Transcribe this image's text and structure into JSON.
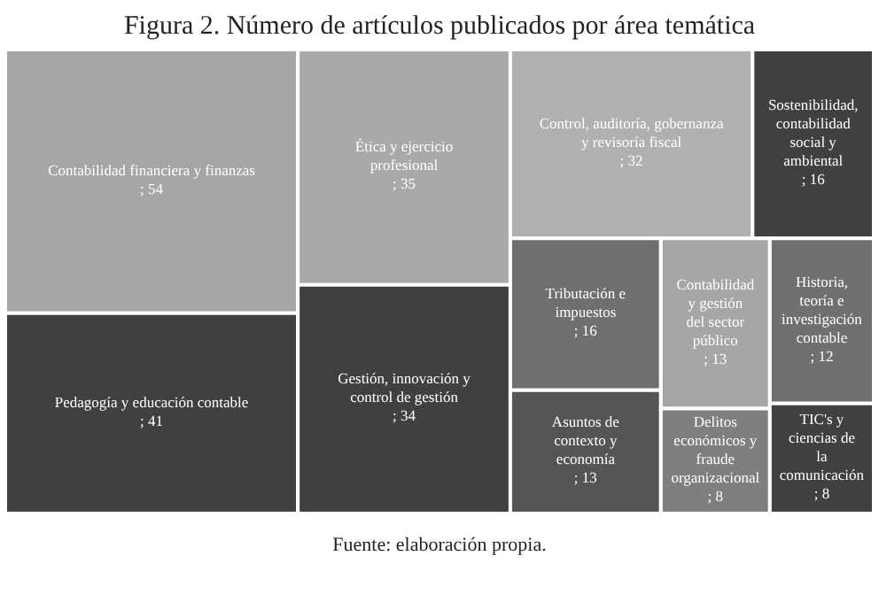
{
  "chart_data": {
    "type": "other",
    "title": "Figura 2. Número de artículos publicados por área temática",
    "categories": [
      "Contabilidad financiera y finanzas",
      "Pedagogía y educación contable",
      "Ética y ejercicio profesional",
      "Gestión, innovación y control de gestión",
      "Control, auditoría, gobernanza y revisoría fiscal",
      "Sostenibilidad, contabilidad social y ambiental",
      "Tributación e impuestos",
      "Asuntos de contexto y economía",
      "Contabilidad y gestión del sector público",
      "Delitos económicos y fraude organizacional",
      "Historia, teoría e investigación contable",
      "TIC's y ciencias de la comunicación"
    ],
    "values": [
      54,
      41,
      35,
      34,
      32,
      16,
      16,
      13,
      13,
      8,
      12,
      8
    ],
    "colors": [
      "#a6a6a6",
      "#404040",
      "#a9a9a9",
      "#404040",
      "#b0b0b0",
      "#404040",
      "#6f6f6f",
      "#555555",
      "#a6a6a6",
      "#7f7f7f",
      "#707070",
      "#404040"
    ],
    "value_labels": [
      "; 54",
      "; 41",
      "; 35",
      "; 34",
      "; 32",
      "; 16",
      "; 16",
      "; 13",
      "; 13",
      "; 8",
      "; 12",
      "; 8"
    ],
    "annotations": [
      "Fuente: elaboración propia."
    ]
  }
}
